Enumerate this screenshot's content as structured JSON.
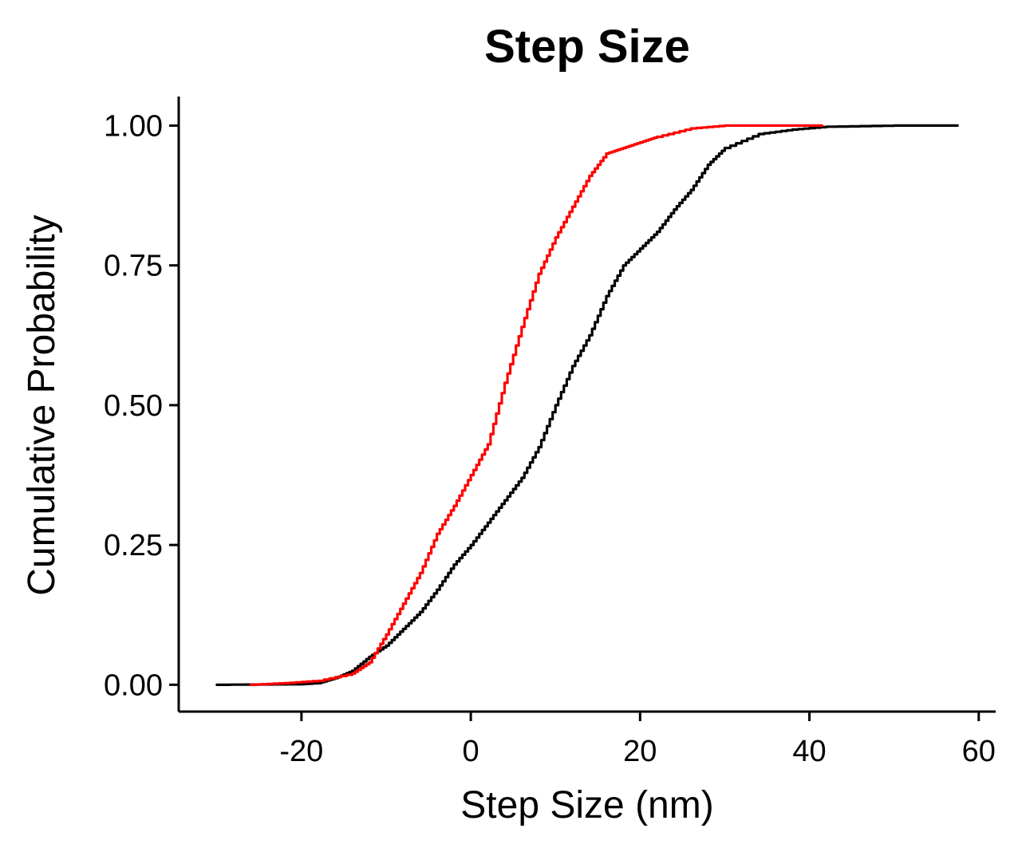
{
  "chart_data": {
    "type": "line",
    "title": "Step Size",
    "xlabel": "Step Size (nm)",
    "ylabel": "Cumulative Probability",
    "xlim": [
      -34.5,
      62
    ],
    "ylim": [
      -0.048,
      1.052
    ],
    "xticks": [
      -20,
      0,
      20,
      40,
      60
    ],
    "xtick_labels": [
      "-20",
      "0",
      "20",
      "40",
      "60"
    ],
    "yticks": [
      0,
      0.25,
      0.5,
      0.75,
      1.0
    ],
    "ytick_labels": [
      "0.00",
      "0.25",
      "0.50",
      "0.75",
      "1.00"
    ],
    "grid": false,
    "legend": "none",
    "series": [
      {
        "color": "#000000",
        "points": [
          [
            -30,
            0
          ],
          [
            -20,
            0.001
          ],
          [
            -18,
            0.003
          ],
          [
            -16,
            0.012
          ],
          [
            -14,
            0.025
          ],
          [
            -12,
            0.05
          ],
          [
            -10,
            0.07
          ],
          [
            -8,
            0.1
          ],
          [
            -6,
            0.13
          ],
          [
            -4,
            0.17
          ],
          [
            -2,
            0.215
          ],
          [
            0,
            0.25
          ],
          [
            2,
            0.29
          ],
          [
            4,
            0.33
          ],
          [
            6,
            0.37
          ],
          [
            8,
            0.425
          ],
          [
            10,
            0.5
          ],
          [
            12,
            0.57
          ],
          [
            14,
            0.625
          ],
          [
            16,
            0.695
          ],
          [
            18,
            0.75
          ],
          [
            20,
            0.78
          ],
          [
            22,
            0.81
          ],
          [
            24,
            0.85
          ],
          [
            26,
            0.885
          ],
          [
            28,
            0.93
          ],
          [
            30,
            0.96
          ],
          [
            34,
            0.985
          ],
          [
            38,
            0.993
          ],
          [
            42,
            0.998
          ],
          [
            50,
            1.0
          ],
          [
            57.5,
            1.0
          ]
        ]
      },
      {
        "color": "#ff0000",
        "points": [
          [
            -26,
            0
          ],
          [
            -22,
            0.003
          ],
          [
            -18,
            0.007
          ],
          [
            -14,
            0.02
          ],
          [
            -12,
            0.04
          ],
          [
            -10,
            0.09
          ],
          [
            -8,
            0.145
          ],
          [
            -6,
            0.2
          ],
          [
            -4,
            0.27
          ],
          [
            -2,
            0.32
          ],
          [
            0,
            0.375
          ],
          [
            2,
            0.43
          ],
          [
            4,
            0.54
          ],
          [
            6,
            0.64
          ],
          [
            8,
            0.735
          ],
          [
            10,
            0.8
          ],
          [
            12,
            0.855
          ],
          [
            14,
            0.91
          ],
          [
            16,
            0.95
          ],
          [
            18,
            0.96
          ],
          [
            20,
            0.97
          ],
          [
            22,
            0.98
          ],
          [
            26,
            0.995
          ],
          [
            30,
            1.0
          ],
          [
            41.5,
            1.0
          ]
        ]
      }
    ]
  }
}
